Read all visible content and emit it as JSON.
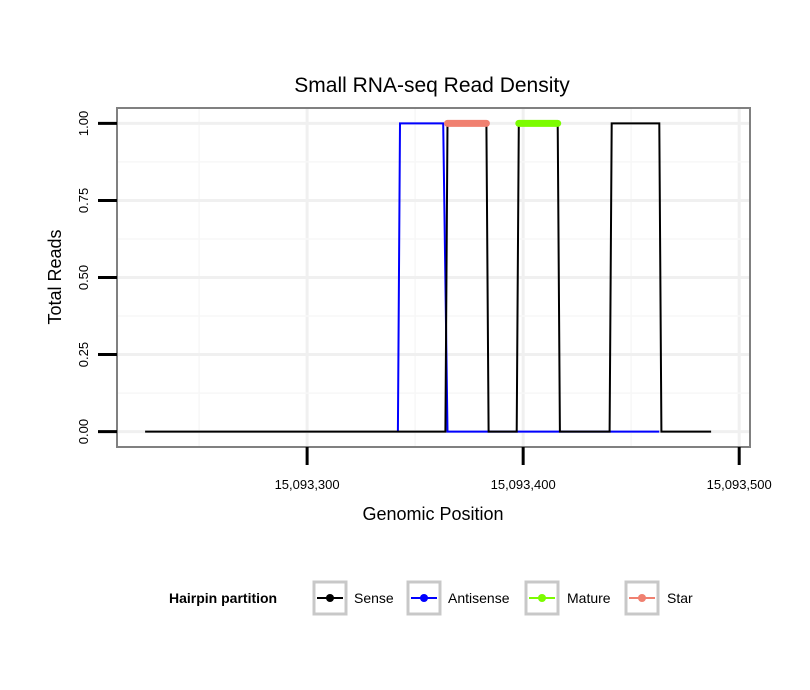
{
  "chart_data": {
    "type": "line",
    "title": "Small RNA-seq Read Density",
    "xlabel": "Genomic Position",
    "ylabel": "Total Reads",
    "xlim": [
      15093212,
      15093505
    ],
    "ylim": [
      -0.05,
      1.05
    ],
    "x_ticks": [
      {
        "value": 15093300,
        "label": "15,093,300"
      },
      {
        "value": 15093400,
        "label": "15,093,400"
      },
      {
        "value": 15093500,
        "label": "15,093,500"
      }
    ],
    "y_ticks": [
      {
        "value": 0,
        "label": "0.00"
      },
      {
        "value": 0.25,
        "label": "0.25"
      },
      {
        "value": 0.5,
        "label": "0.50"
      },
      {
        "value": 0.75,
        "label": "0.75"
      },
      {
        "value": 1,
        "label": "1.00"
      }
    ],
    "series": [
      {
        "name": "Sense",
        "color": "#000000",
        "x": [
          15093225,
          15093364,
          15093365,
          15093383,
          15093384,
          15093397,
          15093398,
          15093416,
          15093417,
          15093440,
          15093441,
          15093463,
          15093464,
          15093487
        ],
        "y": [
          0,
          0,
          1,
          1,
          0,
          0,
          1,
          1,
          0,
          0,
          1,
          1,
          0,
          0
        ]
      },
      {
        "name": "Antisense",
        "color": "#0000ff",
        "x": [
          15093342,
          15093343,
          15093363,
          15093365,
          15093417,
          15093463
        ],
        "y": [
          0,
          1,
          1,
          0,
          0,
          0
        ]
      },
      {
        "name": "Mature",
        "color": "#7cfc00",
        "x": [
          15093398,
          15093416
        ],
        "y": [
          1,
          1
        ]
      },
      {
        "name": "Star",
        "color": "#f08070",
        "x": [
          15093365,
          15093383
        ],
        "y": [
          1,
          1
        ]
      }
    ],
    "legend": {
      "title": "Hairpin partition",
      "position": "bottom",
      "items": [
        "Sense",
        "Antisense",
        "Mature",
        "Star"
      ]
    },
    "grid": true
  }
}
